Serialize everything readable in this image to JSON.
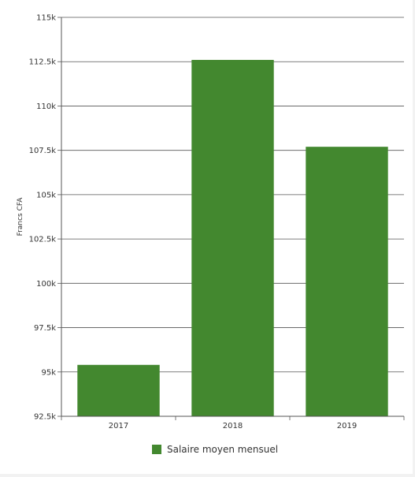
{
  "chart_data": {
    "type": "bar",
    "categories": [
      "2017",
      "2018",
      "2019"
    ],
    "series": [
      {
        "name": "Salaire moyen mensuel",
        "values": [
          95400,
          112600,
          107700
        ],
        "color": "#43882f"
      }
    ],
    "title": "",
    "xlabel": "",
    "ylabel": "Francs CFA",
    "ylim": [
      92500,
      115000
    ],
    "yticks": [
      92500,
      95000,
      97500,
      100000,
      102500,
      105000,
      107500,
      110000,
      112500,
      115000
    ],
    "ytick_labels": [
      "92.5k",
      "95k",
      "97.5k",
      "100k",
      "102.5k",
      "105k",
      "107.5k",
      "110k",
      "112.5k",
      "115k"
    ],
    "grid": true,
    "legend_position": "bottom"
  }
}
